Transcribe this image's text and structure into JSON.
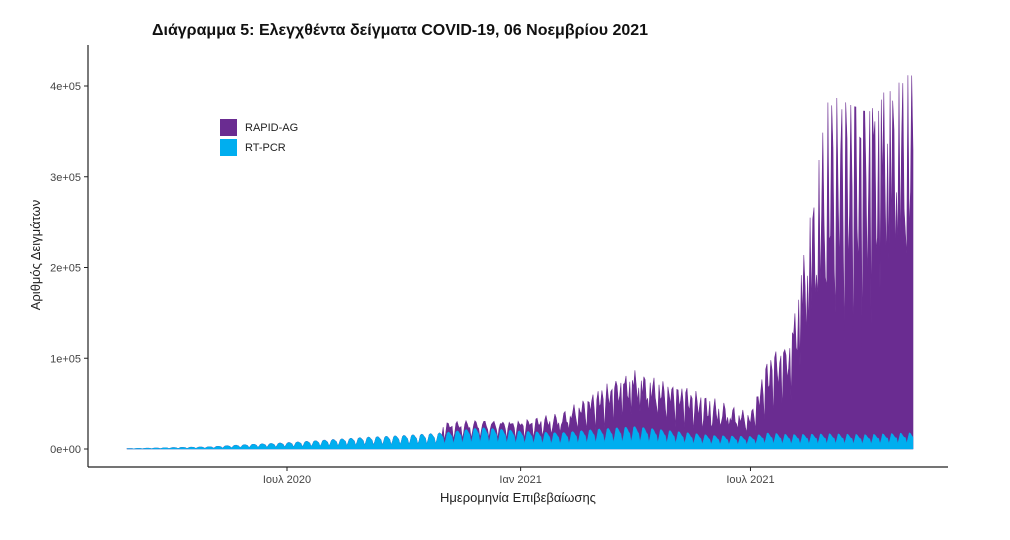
{
  "chart_data": {
    "type": "area",
    "stacked": true,
    "title": "Διάγραμμα 5: Ελεγχθέντα δείγματα COVID-19, 06 Νοεμβρίου 2021",
    "xlabel": "Ημερομηνία Επιβεβαίωσης",
    "ylabel": "Αριθμός Δειγμάτων",
    "ylim": [
      0,
      440000
    ],
    "xlim": [
      "2020-02-26",
      "2021-11-06"
    ],
    "x_ticks": [
      {
        "date": "2020-07-01",
        "label": "Ιουλ 2020"
      },
      {
        "date": "2021-01-01",
        "label": "Ιαν 2021"
      },
      {
        "date": "2021-07-01",
        "label": "Ιουλ 2021"
      }
    ],
    "y_ticks": [
      {
        "value": 0,
        "label": "0e+00"
      },
      {
        "value": 100000,
        "label": "1e+05"
      },
      {
        "value": 200000,
        "label": "2e+05"
      },
      {
        "value": 300000,
        "label": "3e+05"
      },
      {
        "value": 400000,
        "label": "4e+05"
      }
    ],
    "grid": false,
    "legend_position": "top-left",
    "series": [
      {
        "name": "RAPID-AG",
        "color": "#6a2c91"
      },
      {
        "name": "RT-PCR",
        "color": "#00aeef"
      }
    ],
    "x": [
      "2020-03-01",
      "2020-04-01",
      "2020-05-01",
      "2020-06-01",
      "2020-07-01",
      "2020-08-01",
      "2020-09-01",
      "2020-10-01",
      "2020-11-01",
      "2020-12-01",
      "2021-01-01",
      "2021-02-01",
      "2021-03-01",
      "2021-04-01",
      "2021-05-01",
      "2021-06-01",
      "2021-07-01",
      "2021-07-15",
      "2021-08-01",
      "2021-09-01",
      "2021-10-01",
      "2021-11-01"
    ],
    "rt_pcr_peak": [
      500,
      1500,
      2500,
      5000,
      7000,
      10000,
      13000,
      15000,
      18000,
      24000,
      20000,
      18000,
      22000,
      25000,
      20000,
      15000,
      14000,
      18000,
      16000,
      17000,
      16000,
      18000
    ],
    "rapid_ag_peak": [
      0,
      0,
      0,
      0,
      0,
      0,
      0,
      2000,
      12000,
      8000,
      12000,
      22000,
      45000,
      62000,
      55000,
      42000,
      28000,
      85000,
      100000,
      380000,
      360000,
      400000
    ],
    "rapid_ag_base": [
      0,
      0,
      0,
      0,
      0,
      0,
      0,
      0,
      5000,
      4000,
      6000,
      10000,
      18000,
      30000,
      25000,
      15000,
      12000,
      40000,
      60000,
      160000,
      150000,
      185000
    ]
  }
}
